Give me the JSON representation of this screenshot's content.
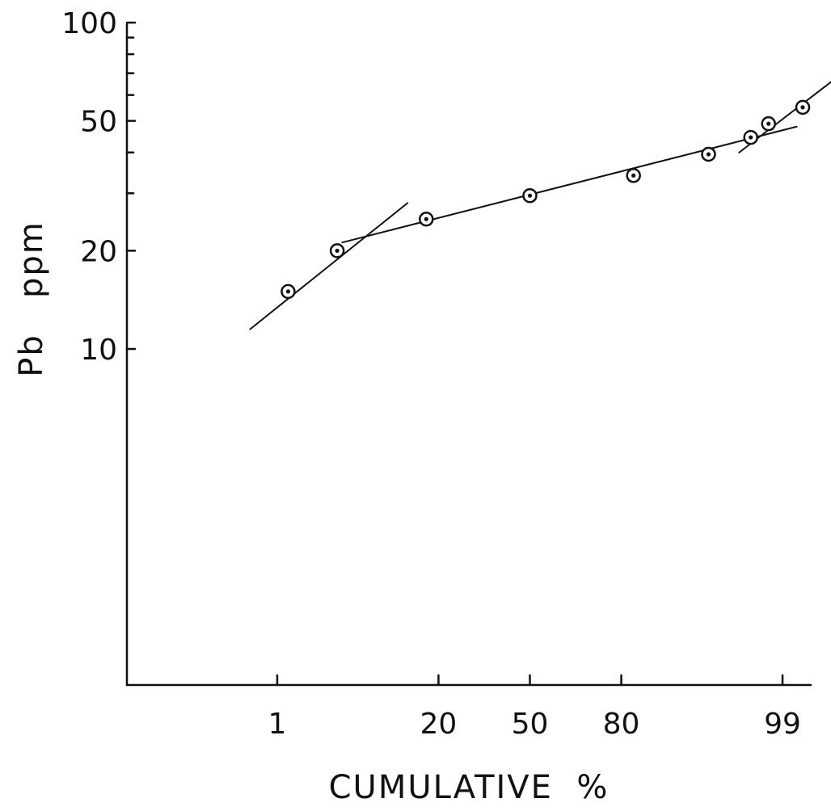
{
  "chart_data": {
    "type": "scatter",
    "title": "",
    "xlabel": "CUMULATIVE  %",
    "ylabel": "Pb   ppm",
    "x_scale": "probability",
    "y_scale": "log",
    "x_ticks": [
      {
        "value": 1,
        "label": "1"
      },
      {
        "value": 20,
        "label": "20"
      },
      {
        "value": 50,
        "label": "50"
      },
      {
        "value": 80,
        "label": "80"
      },
      {
        "value": 99,
        "label": "99"
      }
    ],
    "y_tick_labels": [
      {
        "value": 100,
        "label": "100"
      },
      {
        "value": 50,
        "label": "50"
      },
      {
        "value": 20,
        "label": "20"
      },
      {
        "value": 10,
        "label": "10"
      }
    ],
    "y_minor_ticks": [
      90,
      80,
      70,
      60,
      40,
      30
    ],
    "ylim": [
      1,
      100
    ],
    "grid": false,
    "series": [
      {
        "points": [
          {
            "x": 1.3,
            "y": 15
          },
          {
            "x": 3.8,
            "y": 20
          },
          {
            "x": 17,
            "y": 25
          },
          {
            "x": 50,
            "y": 29.5
          },
          {
            "x": 83,
            "y": 34
          },
          {
            "x": 95,
            "y": 39.5
          },
          {
            "x": 97.9,
            "y": 44.5
          },
          {
            "x": 98.6,
            "y": 49
          },
          {
            "x": 99.4,
            "y": 55
          }
        ]
      }
    ],
    "fit_lines": [
      {
        "from": {
          "x": 0.5,
          "y": 11.5
        },
        "to": {
          "x": 13,
          "y": 28
        }
      },
      {
        "from": {
          "x": 4.2,
          "y": 21.2
        },
        "to": {
          "x": 99.3,
          "y": 48
        }
      },
      {
        "from": {
          "x": 97.3,
          "y": 40
        },
        "to": {
          "x": 99.8,
          "y": 70
        }
      }
    ]
  }
}
